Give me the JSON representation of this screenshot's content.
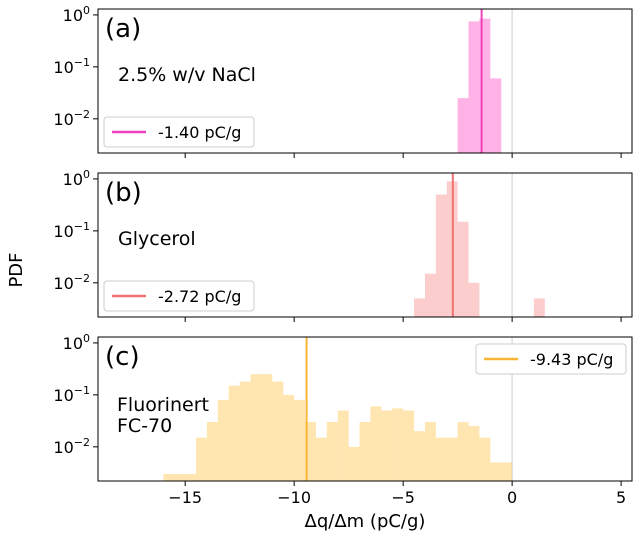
{
  "figure": {
    "ylabel": "PDF",
    "xlabel": "Δq/Δm (pC/g)",
    "xticks": [
      -15,
      -10,
      -5,
      0,
      5
    ],
    "yticks": [
      {
        "value": 1,
        "mantissa": "10",
        "exp": "0"
      },
      {
        "value": 0.1,
        "mantissa": "10",
        "exp": "−1"
      },
      {
        "value": 0.01,
        "mantissa": "10",
        "exp": "−2"
      }
    ]
  },
  "chart_data": [
    {
      "type": "histogram",
      "panel_label": "(a)",
      "sample_lines": [
        "2.5% w/v NaCl"
      ],
      "color": "#ff66cc",
      "bar_opacity": 0.5,
      "mean_line_color": "#ee44bb",
      "legend": {
        "label": "-1.40 pC/g",
        "position": "lower-left"
      },
      "mean": -1.4,
      "zero_line": 0,
      "yscale": "log",
      "xlim": [
        -19,
        5.5
      ],
      "ylim": [
        0.0022,
        1.3
      ],
      "bins": [
        {
          "x0": -2.5,
          "x1": -2.0,
          "value": 0.025
        },
        {
          "x0": -2.0,
          "x1": -1.5,
          "value": 0.75
        },
        {
          "x0": -1.5,
          "x1": -1.0,
          "value": 0.85
        },
        {
          "x0": -1.0,
          "x1": -0.5,
          "value": 0.06
        }
      ]
    },
    {
      "type": "histogram",
      "panel_label": "(b)",
      "sample_lines": [
        "Glycerol"
      ],
      "color": "#f89090",
      "bar_opacity": 0.45,
      "mean_line_color": "#f07272",
      "legend": {
        "label": "-2.72 pC/g",
        "position": "lower-left"
      },
      "mean": -2.72,
      "zero_line": 0,
      "yscale": "log",
      "xlim": [
        -19,
        5.5
      ],
      "ylim": [
        0.0022,
        1.3
      ],
      "bins": [
        {
          "x0": -4.5,
          "x1": -4.0,
          "value": 0.005
        },
        {
          "x0": -4.0,
          "x1": -3.5,
          "value": 0.015
        },
        {
          "x0": -3.5,
          "x1": -3.0,
          "value": 0.5
        },
        {
          "x0": -3.0,
          "x1": -2.5,
          "value": 0.9
        },
        {
          "x0": -2.5,
          "x1": -2.0,
          "value": 0.15
        },
        {
          "x0": -2.0,
          "x1": -1.5,
          "value": 0.01
        },
        {
          "x0": 1.0,
          "x1": 1.5,
          "value": 0.005
        }
      ]
    },
    {
      "type": "histogram",
      "panel_label": "(c)",
      "sample_lines": [
        "Fluorinert",
        "FC-70"
      ],
      "color": "#ffc64d",
      "bar_opacity": 0.45,
      "mean_line_color": "#fbb534",
      "legend": {
        "label": "-9.43 pC/g",
        "position": "upper-right"
      },
      "mean": -9.43,
      "zero_line": 0,
      "yscale": "log",
      "xlim": [
        -19,
        5.5
      ],
      "ylim": [
        0.0022,
        1.3
      ],
      "bins": [
        {
          "x0": -16.0,
          "x1": -14.5,
          "value": 0.003
        },
        {
          "x0": -14.5,
          "x1": -14.0,
          "value": 0.015
        },
        {
          "x0": -14.0,
          "x1": -13.5,
          "value": 0.03
        },
        {
          "x0": -13.5,
          "x1": -13.0,
          "value": 0.08
        },
        {
          "x0": -13.0,
          "x1": -12.5,
          "value": 0.15
        },
        {
          "x0": -12.5,
          "x1": -12.0,
          "value": 0.18
        },
        {
          "x0": -12.0,
          "x1": -11.0,
          "value": 0.25
        },
        {
          "x0": -11.0,
          "x1": -10.5,
          "value": 0.18
        },
        {
          "x0": -10.5,
          "x1": -10.0,
          "value": 0.1
        },
        {
          "x0": -10.0,
          "x1": -9.5,
          "value": 0.08
        },
        {
          "x0": -9.5,
          "x1": -9.0,
          "value": 0.03
        },
        {
          "x0": -9.0,
          "x1": -8.5,
          "value": 0.015
        },
        {
          "x0": -8.5,
          "x1": -8.0,
          "value": 0.03
        },
        {
          "x0": -8.0,
          "x1": -7.5,
          "value": 0.05
        },
        {
          "x0": -7.5,
          "x1": -7.0,
          "value": 0.01
        },
        {
          "x0": -7.0,
          "x1": -6.5,
          "value": 0.03
        },
        {
          "x0": -6.5,
          "x1": -6.0,
          "value": 0.06
        },
        {
          "x0": -6.0,
          "x1": -5.5,
          "value": 0.05
        },
        {
          "x0": -5.5,
          "x1": -5.0,
          "value": 0.055
        },
        {
          "x0": -5.0,
          "x1": -4.5,
          "value": 0.05
        },
        {
          "x0": -4.5,
          "x1": -4.0,
          "value": 0.02
        },
        {
          "x0": -4.0,
          "x1": -3.5,
          "value": 0.03
        },
        {
          "x0": -3.5,
          "x1": -3.0,
          "value": 0.015
        },
        {
          "x0": -3.0,
          "x1": -2.5,
          "value": 0.015
        },
        {
          "x0": -2.5,
          "x1": -2.0,
          "value": 0.03
        },
        {
          "x0": -2.0,
          "x1": -1.5,
          "value": 0.025
        },
        {
          "x0": -1.5,
          "x1": -1.0,
          "value": 0.015
        },
        {
          "x0": -1.0,
          "x1": 0.0,
          "value": 0.005
        }
      ]
    }
  ]
}
